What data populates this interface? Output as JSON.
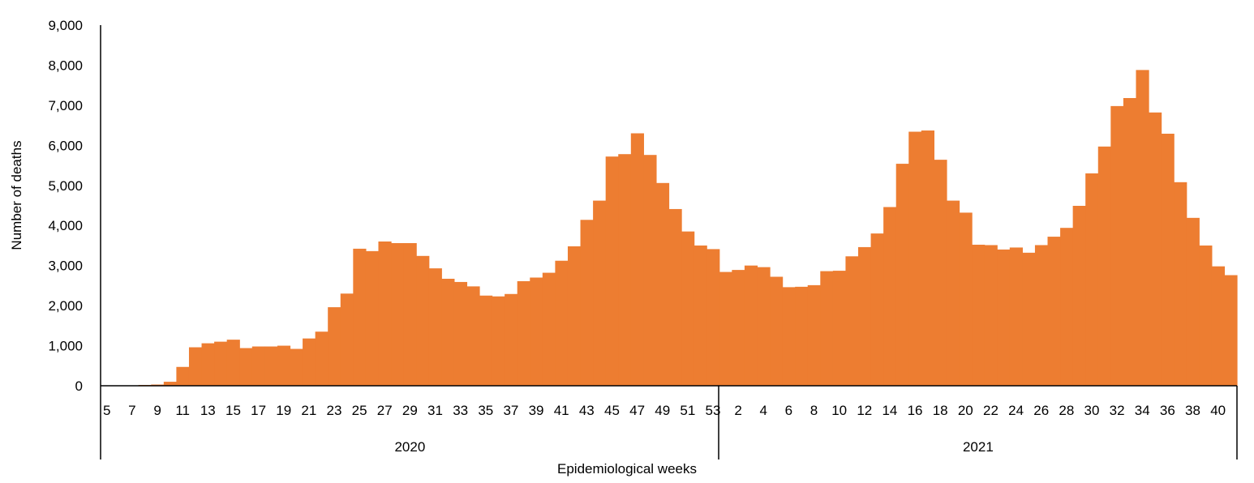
{
  "chart_data": {
    "type": "bar",
    "title": "",
    "xlabel": "Epidemiological weeks",
    "ylabel": "Number of  deaths",
    "ylim": [
      0,
      9000
    ],
    "y_ticks": [
      "0",
      "1,000",
      "2,000",
      "3,000",
      "4,000",
      "5,000",
      "6,000",
      "7,000",
      "8,000",
      "9,000"
    ],
    "y_tick_values": [
      0,
      1000,
      2000,
      3000,
      4000,
      5000,
      6000,
      7000,
      8000,
      9000
    ],
    "grid": false,
    "bar_color": "#ED7D31",
    "groups": [
      {
        "label": "2020",
        "start_index": 0,
        "end_index": 48
      },
      {
        "label": "2021",
        "start_index": 49,
        "end_index": 89
      }
    ],
    "categories": [
      "5",
      "6",
      "7",
      "8",
      "9",
      "10",
      "11",
      "12",
      "13",
      "14",
      "15",
      "16",
      "17",
      "18",
      "19",
      "20",
      "21",
      "22",
      "23",
      "24",
      "25",
      "26",
      "27",
      "28",
      "29",
      "30",
      "31",
      "32",
      "33",
      "34",
      "35",
      "36",
      "37",
      "38",
      "39",
      "40",
      "41",
      "42",
      "43",
      "44",
      "45",
      "46",
      "47",
      "48",
      "49",
      "50",
      "51",
      "52",
      "53",
      "1",
      "2",
      "3",
      "4",
      "5",
      "6",
      "7",
      "8",
      "9",
      "10",
      "11",
      "12",
      "13",
      "14",
      "15",
      "16",
      "17",
      "18",
      "19",
      "20",
      "21",
      "22",
      "23",
      "24",
      "25",
      "26",
      "27",
      "28",
      "29",
      "30",
      "31",
      "32",
      "33",
      "34",
      "35",
      "36",
      "37",
      "38",
      "39",
      "40",
      "41"
    ],
    "category_labels": [
      "5",
      "",
      "7",
      "",
      "9",
      "",
      "11",
      "",
      "13",
      "",
      "15",
      "",
      "17",
      "",
      "19",
      "",
      "21",
      "",
      "23",
      "",
      "25",
      "",
      "27",
      "",
      "29",
      "",
      "31",
      "",
      "33",
      "",
      "35",
      "",
      "37",
      "",
      "39",
      "",
      "41",
      "",
      "43",
      "",
      "45",
      "",
      "47",
      "",
      "49",
      "",
      "51",
      "",
      "53",
      "",
      "2",
      "",
      "4",
      "",
      "6",
      "",
      "8",
      "",
      "10",
      "",
      "12",
      "",
      "14",
      "",
      "16",
      "",
      "18",
      "",
      "20",
      "",
      "22",
      "",
      "24",
      "",
      "26",
      "",
      "28",
      "",
      "30",
      "",
      "32",
      "",
      "34",
      "",
      "36",
      "",
      "38",
      "",
      "40",
      ""
    ],
    "values": [
      0,
      0,
      0,
      20,
      30,
      100,
      470,
      960,
      1060,
      1100,
      1150,
      940,
      980,
      980,
      1000,
      920,
      1180,
      1350,
      1960,
      2300,
      3420,
      3360,
      3600,
      3560,
      3560,
      3240,
      2930,
      2670,
      2590,
      2480,
      2250,
      2230,
      2290,
      2610,
      2700,
      2820,
      3120,
      3480,
      4140,
      4620,
      5720,
      5780,
      6300,
      5760,
      5060,
      4410,
      3850,
      3500,
      3410,
      2840,
      2890,
      3000,
      2960,
      2720,
      2460,
      2470,
      2510,
      2860,
      2870,
      3230,
      3460,
      3800,
      4460,
      5540,
      6340,
      6370,
      5640,
      4620,
      4320,
      3520,
      3510,
      3400,
      3450,
      3320,
      3510,
      3720,
      3940,
      4490,
      5300,
      5970,
      6980,
      7180,
      7880,
      6820,
      6290,
      5080,
      4190,
      3500,
      2980,
      2760
    ]
  }
}
